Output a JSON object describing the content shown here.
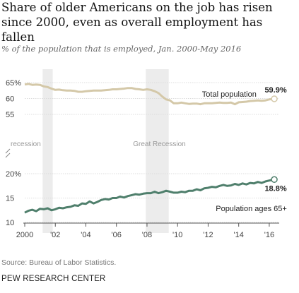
{
  "title": "Share of older Americans on the job has risen since 2000, even as overall employment has fallen",
  "subtitle": "% of the population that is employed, Jan. 2000-May 2016",
  "source": "Source: Bureau of Labor Statistics.",
  "organization": "PEW RESEARCH CENTER",
  "colors": {
    "total": "#d4c8a8",
    "older": "#4f7f6c",
    "recession": "#ececec",
    "grid": "#dcdcdc"
  },
  "chart_data": {
    "type": "line",
    "x_tick_labels": [
      "2000",
      "'02",
      "'04",
      "'06",
      "'08",
      "'10",
      "'12",
      "'14",
      "'16"
    ],
    "x_ticks": [
      2000,
      2002,
      2004,
      2006,
      2008,
      2010,
      2012,
      2014,
      2016
    ],
    "xlim": [
      2000,
      2016.42
    ],
    "axis_break": true,
    "upper_panel": {
      "ylim": [
        55,
        65
      ],
      "ticks": [
        55,
        60,
        65
      ],
      "tick_labels": [
        "55",
        "60",
        "65%"
      ]
    },
    "lower_panel": {
      "ylim": [
        10,
        20
      ],
      "ticks": [
        10,
        15,
        20
      ],
      "tick_labels": [
        "10",
        "15",
        "20%"
      ]
    },
    "recessions": [
      {
        "label": "recession",
        "start": 2001.17,
        "end": 2001.83
      },
      {
        "label": "Great Recession",
        "start": 2007.92,
        "end": 2009.42
      }
    ],
    "series": [
      {
        "name": "Total population",
        "panel": "upper",
        "end_label": "59.9%",
        "x": [
          2000.0,
          2000.25,
          2000.5,
          2000.75,
          2001.0,
          2001.25,
          2001.5,
          2001.75,
          2002.0,
          2002.25,
          2002.5,
          2002.75,
          2003.0,
          2003.25,
          2003.5,
          2003.75,
          2004.0,
          2004.25,
          2004.5,
          2004.75,
          2005.0,
          2005.25,
          2005.5,
          2005.75,
          2006.0,
          2006.25,
          2006.5,
          2006.75,
          2007.0,
          2007.25,
          2007.5,
          2007.75,
          2008.0,
          2008.25,
          2008.5,
          2008.75,
          2009.0,
          2009.25,
          2009.5,
          2009.75,
          2010.0,
          2010.25,
          2010.5,
          2010.75,
          2011.0,
          2011.25,
          2011.5,
          2011.75,
          2012.0,
          2012.25,
          2012.5,
          2012.75,
          2013.0,
          2013.25,
          2013.5,
          2013.75,
          2014.0,
          2014.25,
          2014.5,
          2014.75,
          2015.0,
          2015.25,
          2015.5,
          2015.75,
          2016.0,
          2016.33
        ],
        "y": [
          64.4,
          64.6,
          64.3,
          64.4,
          64.3,
          63.8,
          63.6,
          63.1,
          62.7,
          62.8,
          62.6,
          62.5,
          62.5,
          62.4,
          62.1,
          62.1,
          62.3,
          62.4,
          62.5,
          62.5,
          62.5,
          62.6,
          62.7,
          62.9,
          62.9,
          63.0,
          63.1,
          63.3,
          63.3,
          63.0,
          62.9,
          62.7,
          62.9,
          62.7,
          62.3,
          61.7,
          60.6,
          59.7,
          59.4,
          58.5,
          58.5,
          58.7,
          58.5,
          58.3,
          58.4,
          58.4,
          58.2,
          58.5,
          58.5,
          58.5,
          58.6,
          58.7,
          58.6,
          58.6,
          58.7,
          58.2,
          58.8,
          58.9,
          59.0,
          59.2,
          59.3,
          59.4,
          59.3,
          59.4,
          59.7,
          59.9
        ]
      },
      {
        "name": "Population ages 65+",
        "panel": "lower",
        "end_label": "18.8%",
        "x": [
          2000.0,
          2000.25,
          2000.5,
          2000.75,
          2001.0,
          2001.25,
          2001.5,
          2001.75,
          2002.0,
          2002.25,
          2002.5,
          2002.75,
          2003.0,
          2003.25,
          2003.5,
          2003.75,
          2004.0,
          2004.25,
          2004.5,
          2004.75,
          2005.0,
          2005.25,
          2005.5,
          2005.75,
          2006.0,
          2006.25,
          2006.5,
          2006.75,
          2007.0,
          2007.25,
          2007.5,
          2007.75,
          2008.0,
          2008.25,
          2008.5,
          2008.75,
          2009.0,
          2009.25,
          2009.5,
          2009.75,
          2010.0,
          2010.25,
          2010.5,
          2010.75,
          2011.0,
          2011.25,
          2011.5,
          2011.75,
          2012.0,
          2012.25,
          2012.5,
          2012.75,
          2013.0,
          2013.25,
          2013.5,
          2013.75,
          2014.0,
          2014.25,
          2014.5,
          2014.75,
          2015.0,
          2015.25,
          2015.5,
          2015.75,
          2016.0,
          2016.33
        ],
        "y": [
          12.0,
          12.4,
          12.6,
          12.3,
          12.8,
          12.7,
          12.9,
          12.5,
          12.7,
          13.0,
          12.9,
          13.1,
          13.2,
          13.5,
          13.4,
          13.9,
          13.8,
          14.3,
          13.9,
          14.2,
          14.6,
          14.8,
          14.7,
          15.0,
          15.0,
          15.3,
          15.1,
          15.4,
          15.6,
          15.8,
          15.7,
          15.9,
          16.0,
          16.0,
          16.3,
          16.0,
          16.2,
          16.5,
          16.3,
          16.1,
          16.1,
          16.3,
          16.2,
          16.5,
          16.5,
          16.8,
          16.6,
          17.0,
          17.1,
          17.3,
          17.2,
          17.5,
          17.7,
          17.5,
          17.6,
          17.9,
          17.7,
          18.0,
          17.8,
          18.1,
          18.0,
          18.3,
          18.1,
          18.4,
          18.6,
          18.8
        ]
      }
    ]
  }
}
